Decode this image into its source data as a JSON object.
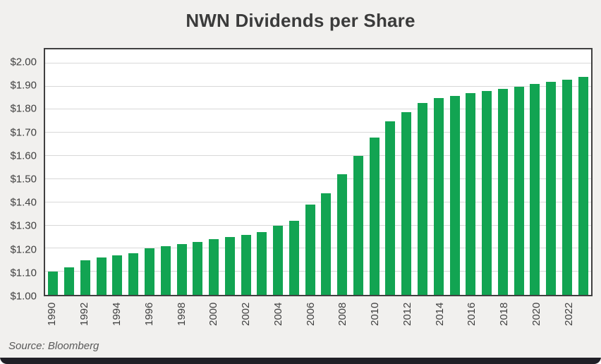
{
  "page": {
    "title": "NWN Dividends per Share",
    "source": "Source: Bloomberg"
  },
  "colors": {
    "bar": "#12a452",
    "background": "#f1f0ee",
    "plot_border": "#404040",
    "gridline": "#d8d8d8",
    "title_text": "#3b3b3b",
    "axis_text": "#404040",
    "bottom_strip": "#201f26"
  },
  "chart_data": {
    "type": "bar",
    "title": "NWN Dividends per Share",
    "source": "Source: Bloomberg",
    "categories": [
      1990,
      1991,
      1992,
      1993,
      1994,
      1995,
      1996,
      1997,
      1998,
      1999,
      2000,
      2001,
      2002,
      2003,
      2004,
      2005,
      2006,
      2007,
      2008,
      2009,
      2010,
      2011,
      2012,
      2013,
      2014,
      2015,
      2016,
      2017,
      2018,
      2019,
      2020,
      2021,
      2022,
      2023
    ],
    "values": [
      1.1,
      1.12,
      1.15,
      1.16,
      1.17,
      1.18,
      1.2,
      1.21,
      1.22,
      1.23,
      1.24,
      1.25,
      1.26,
      1.27,
      1.3,
      1.32,
      1.39,
      1.44,
      1.52,
      1.6,
      1.68,
      1.75,
      1.79,
      1.83,
      1.85,
      1.86,
      1.87,
      1.88,
      1.89,
      1.9,
      1.91,
      1.92,
      1.93,
      1.94
    ],
    "ylabel": "",
    "xlabel": "",
    "ylim": [
      1.0,
      2.0
    ],
    "y_axis_headroom_top": 2.06,
    "ytick_step": 0.1,
    "ytick_prefix": "$",
    "xtick_every": 2,
    "grid": true,
    "legend_position": "none",
    "bar_color": "#12a452"
  }
}
